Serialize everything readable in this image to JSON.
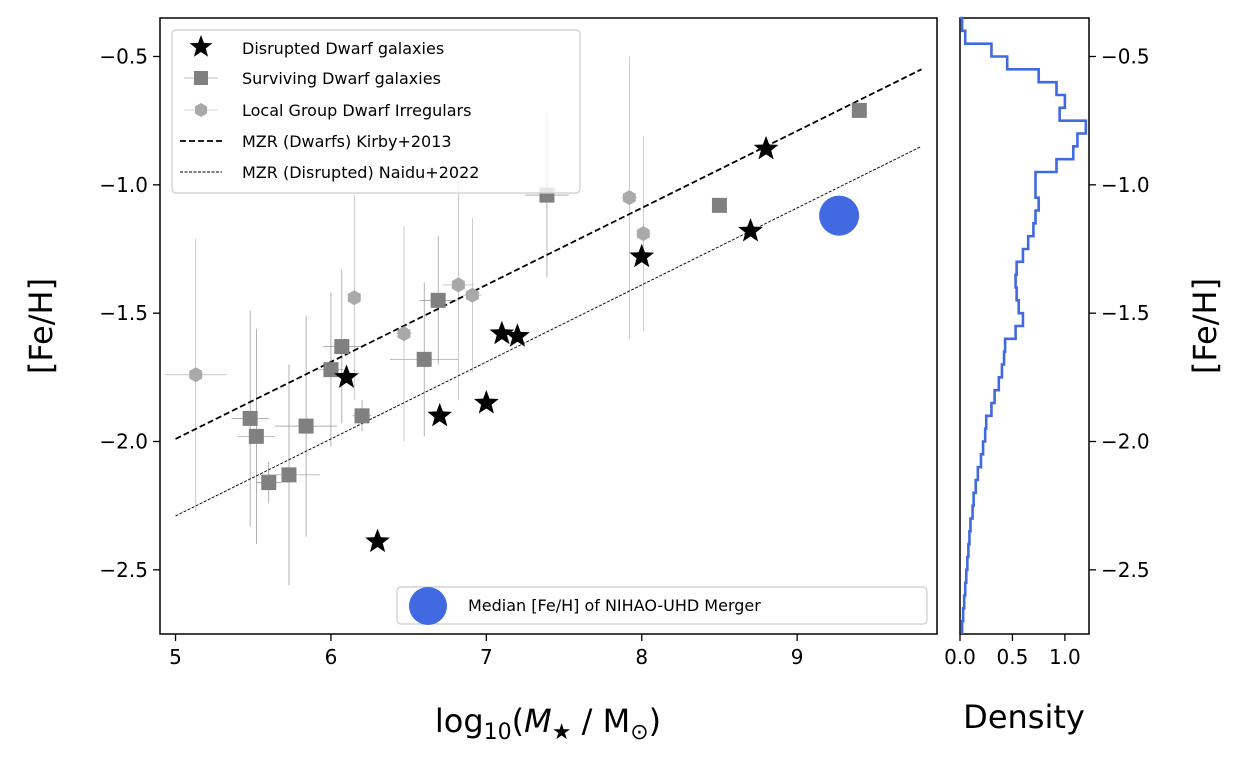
{
  "chart_data": [
    {
      "type": "scatter",
      "xlabel": "log10(M★ / M⊙)",
      "ylabel": "[Fe/H]",
      "xlim": [
        4.9,
        9.9
      ],
      "ylim": [
        -2.75,
        -0.35
      ],
      "x_ticks": [
        5,
        6,
        7,
        8,
        9
      ],
      "y_ticks": [
        -2.5,
        -2.0,
        -1.5,
        -1.0,
        -0.5
      ],
      "x_tick_labels": [
        "5",
        "6",
        "7",
        "8",
        "9"
      ],
      "y_tick_labels": [
        "−2.5",
        "−2.0",
        "−1.5",
        "−1.0",
        "−0.5"
      ],
      "grid": false,
      "legend_position": "top-left",
      "series": [
        {
          "name": "Disrupted Dwarf galaxies",
          "marker": "star",
          "color": "#000000",
          "points": [
            {
              "x": 6.1,
              "y": -1.75
            },
            {
              "x": 6.3,
              "y": -2.39
            },
            {
              "x": 6.7,
              "y": -1.9
            },
            {
              "x": 7.0,
              "y": -1.85
            },
            {
              "x": 7.1,
              "y": -1.58
            },
            {
              "x": 7.2,
              "y": -1.59
            },
            {
              "x": 8.0,
              "y": -1.28
            },
            {
              "x": 8.7,
              "y": -1.18
            },
            {
              "x": 8.8,
              "y": -0.86
            }
          ]
        },
        {
          "name": "Surviving Dwarf galaxies",
          "marker": "square",
          "color": "#808080",
          "points": [
            {
              "x": 5.48,
              "y": -1.91,
              "xerr": 0.12,
              "yerr": 0.42
            },
            {
              "x": 5.52,
              "y": -1.98,
              "xerr": 0.12,
              "yerr": 0.42
            },
            {
              "x": 5.6,
              "y": -2.16,
              "xerr": 0.08,
              "yerr": 0.08
            },
            {
              "x": 5.73,
              "y": -2.13,
              "xerr": 0.2,
              "yerr": 0.43
            },
            {
              "x": 5.84,
              "y": -1.94,
              "xerr": 0.2,
              "yerr": 0.43
            },
            {
              "x": 6.0,
              "y": -1.72,
              "xerr": 0.08,
              "yerr": 0.3
            },
            {
              "x": 6.07,
              "y": -1.63,
              "xerr": 0.12,
              "yerr": 0.3
            },
            {
              "x": 6.2,
              "y": -1.9,
              "xerr": 0.06,
              "yerr": 0.06
            },
            {
              "x": 6.6,
              "y": -1.68,
              "xerr": 0.22,
              "yerr": 0.3
            },
            {
              "x": 6.69,
              "y": -1.45,
              "xerr": 0.12,
              "yerr": 0.25
            },
            {
              "x": 7.39,
              "y": -1.04,
              "xerr": 0.14,
              "yerr": 0.32
            },
            {
              "x": 8.5,
              "y": -1.08,
              "xerr": 0.0,
              "yerr": 0.0
            },
            {
              "x": 9.4,
              "y": -0.71,
              "xerr": 0.0,
              "yerr": 0.0
            }
          ]
        },
        {
          "name": "Local Group Dwarf Irregulars",
          "marker": "hexagon",
          "color": "#a9a9a9",
          "points": [
            {
              "x": 5.13,
              "y": -1.74,
              "xerr": 0.2,
              "yerr": 0.53
            },
            {
              "x": 6.15,
              "y": -1.44,
              "xerr": 0.0,
              "yerr": 0.4
            },
            {
              "x": 6.47,
              "y": -1.58,
              "xerr": 0.05,
              "yerr": 0.42
            },
            {
              "x": 6.82,
              "y": -1.39,
              "xerr": 0.1,
              "yerr": 0.45
            },
            {
              "x": 6.91,
              "y": -1.43,
              "xerr": 0.06,
              "yerr": 0.3
            },
            {
              "x": 7.92,
              "y": -1.05,
              "xerr": 0.05,
              "yerr": 0.55
            },
            {
              "x": 8.01,
              "y": -1.19,
              "xerr": 0.03,
              "yerr": 0.38
            }
          ]
        },
        {
          "name": "MZR (Dwarfs) Kirby+2013",
          "line": "dashed",
          "color": "#000000",
          "x": [
            5.0,
            9.8
          ],
          "y": [
            -1.99,
            -0.55
          ]
        },
        {
          "name": "MZR (Disrupted) Naidu+2022",
          "line": "dashed-thin",
          "color": "#000000",
          "x": [
            5.0,
            9.8
          ],
          "y": [
            -2.29,
            -0.85
          ]
        },
        {
          "name": "Median [Fe/H] of NIHAO-UHD Merger",
          "marker": "circle",
          "color": "#4169e1",
          "points": [
            {
              "x": 9.27,
              "y": -1.12
            }
          ]
        }
      ]
    },
    {
      "type": "histogram",
      "xlabel": "Density",
      "ylabel": "[Fe/H]",
      "xlim": [
        0,
        1.23
      ],
      "ylim": [
        -2.75,
        -0.35
      ],
      "x_ticks": [
        0.0,
        0.5,
        1.0
      ],
      "x_tick_labels": [
        "0.0",
        "0.5",
        "1.0"
      ],
      "y_ticks": [
        -2.5,
        -2.0,
        -1.5,
        -1.0,
        -0.5
      ],
      "y_tick_labels": [
        "−2.5",
        "−2.0",
        "−1.5",
        "−1.0",
        "−0.5"
      ],
      "color": "#4169e1",
      "bin_width": 0.05,
      "bin_tops": [
        -0.35,
        -0.4,
        -0.45,
        -0.5,
        -0.55,
        -0.6,
        -0.65,
        -0.7,
        -0.75,
        -0.8,
        -0.85,
        -0.9,
        -0.95,
        -1.0,
        -1.05,
        -1.1,
        -1.15,
        -1.2,
        -1.25,
        -1.3,
        -1.35,
        -1.4,
        -1.45,
        -1.5,
        -1.55,
        -1.6,
        -1.65,
        -1.7,
        -1.75,
        -1.8,
        -1.85,
        -1.9,
        -1.95,
        -2.0,
        -2.05,
        -2.1,
        -2.15,
        -2.2,
        -2.25,
        -2.3,
        -2.35,
        -2.4,
        -2.45,
        -2.5,
        -2.55,
        -2.6,
        -2.65,
        -2.7
      ],
      "densities": [
        0.02,
        0.05,
        0.3,
        0.45,
        0.75,
        0.92,
        1.0,
        0.95,
        1.2,
        1.12,
        1.08,
        0.92,
        0.72,
        0.72,
        0.75,
        0.72,
        0.7,
        0.65,
        0.6,
        0.54,
        0.53,
        0.54,
        0.56,
        0.6,
        0.53,
        0.43,
        0.42,
        0.4,
        0.37,
        0.33,
        0.3,
        0.25,
        0.24,
        0.22,
        0.2,
        0.17,
        0.15,
        0.13,
        0.12,
        0.1,
        0.09,
        0.08,
        0.07,
        0.06,
        0.05,
        0.04,
        0.03,
        0.02
      ]
    }
  ]
}
